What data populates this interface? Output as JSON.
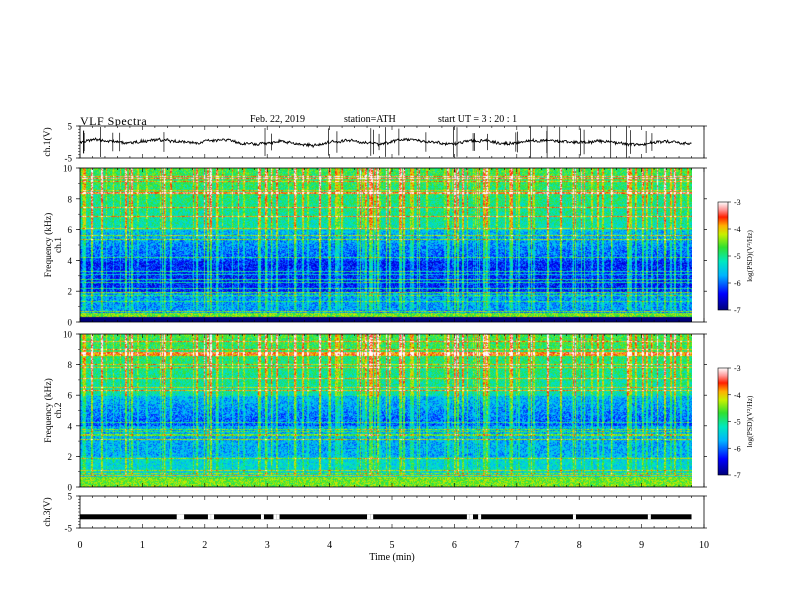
{
  "header": {
    "title": "VLF  Spectra",
    "date": "Feb. 22, 2019",
    "station": "station=ATH",
    "start": "start  UT  =    3  : 20 : 1"
  },
  "chart_data": [
    {
      "type": "line",
      "panel": "ch1-waveform",
      "ylabel": "ch.1(V)",
      "ylim": [
        -5,
        5
      ],
      "yticks": [
        "5",
        "-5"
      ],
      "xlim": [
        0,
        10
      ],
      "x_extent": [
        0,
        9.8
      ],
      "baseline": 0
    },
    {
      "type": "heatmap",
      "panel": "ch1-spectrogram",
      "ylabel": "ch.1\nFrequency  (kHz)",
      "ylim": [
        0,
        10
      ],
      "yticks": [
        "0",
        "2",
        "4",
        "6",
        "8",
        "10"
      ],
      "xlim": [
        0,
        10
      ],
      "x_extent": [
        0,
        9.8
      ],
      "colorbar": {
        "label": "log(PSD)(V²/Hz)",
        "range": [
          -7,
          -3
        ],
        "ticks": [
          "-3",
          "-4",
          "-5",
          "-6",
          "-7"
        ]
      }
    },
    {
      "type": "heatmap",
      "panel": "ch2-spectrogram",
      "ylabel": "ch.2\nFrequency  (kHz)",
      "ylim": [
        0,
        10
      ],
      "yticks": [
        "0",
        "2",
        "4",
        "6",
        "8",
        "10"
      ],
      "xlim": [
        0,
        10
      ],
      "x_extent": [
        0,
        9.8
      ],
      "colorbar": {
        "label": "log(PSD)(V²/Hz)",
        "range": [
          -7,
          -3
        ],
        "ticks": [
          "-3",
          "-4",
          "-5",
          "-6",
          "-7"
        ]
      }
    },
    {
      "type": "line",
      "panel": "ch3-signal",
      "ylabel": "ch.3(V)",
      "ylim": [
        -5,
        5
      ],
      "yticks": [
        "5",
        "-5"
      ],
      "xlim": [
        0,
        10
      ],
      "x_extent": [
        0,
        9.8
      ],
      "level": -1.5,
      "xlabel": "Time  (min)",
      "xticks": [
        "0",
        "1",
        "2",
        "3",
        "4",
        "5",
        "6",
        "7",
        "8",
        "9",
        "10"
      ]
    }
  ]
}
